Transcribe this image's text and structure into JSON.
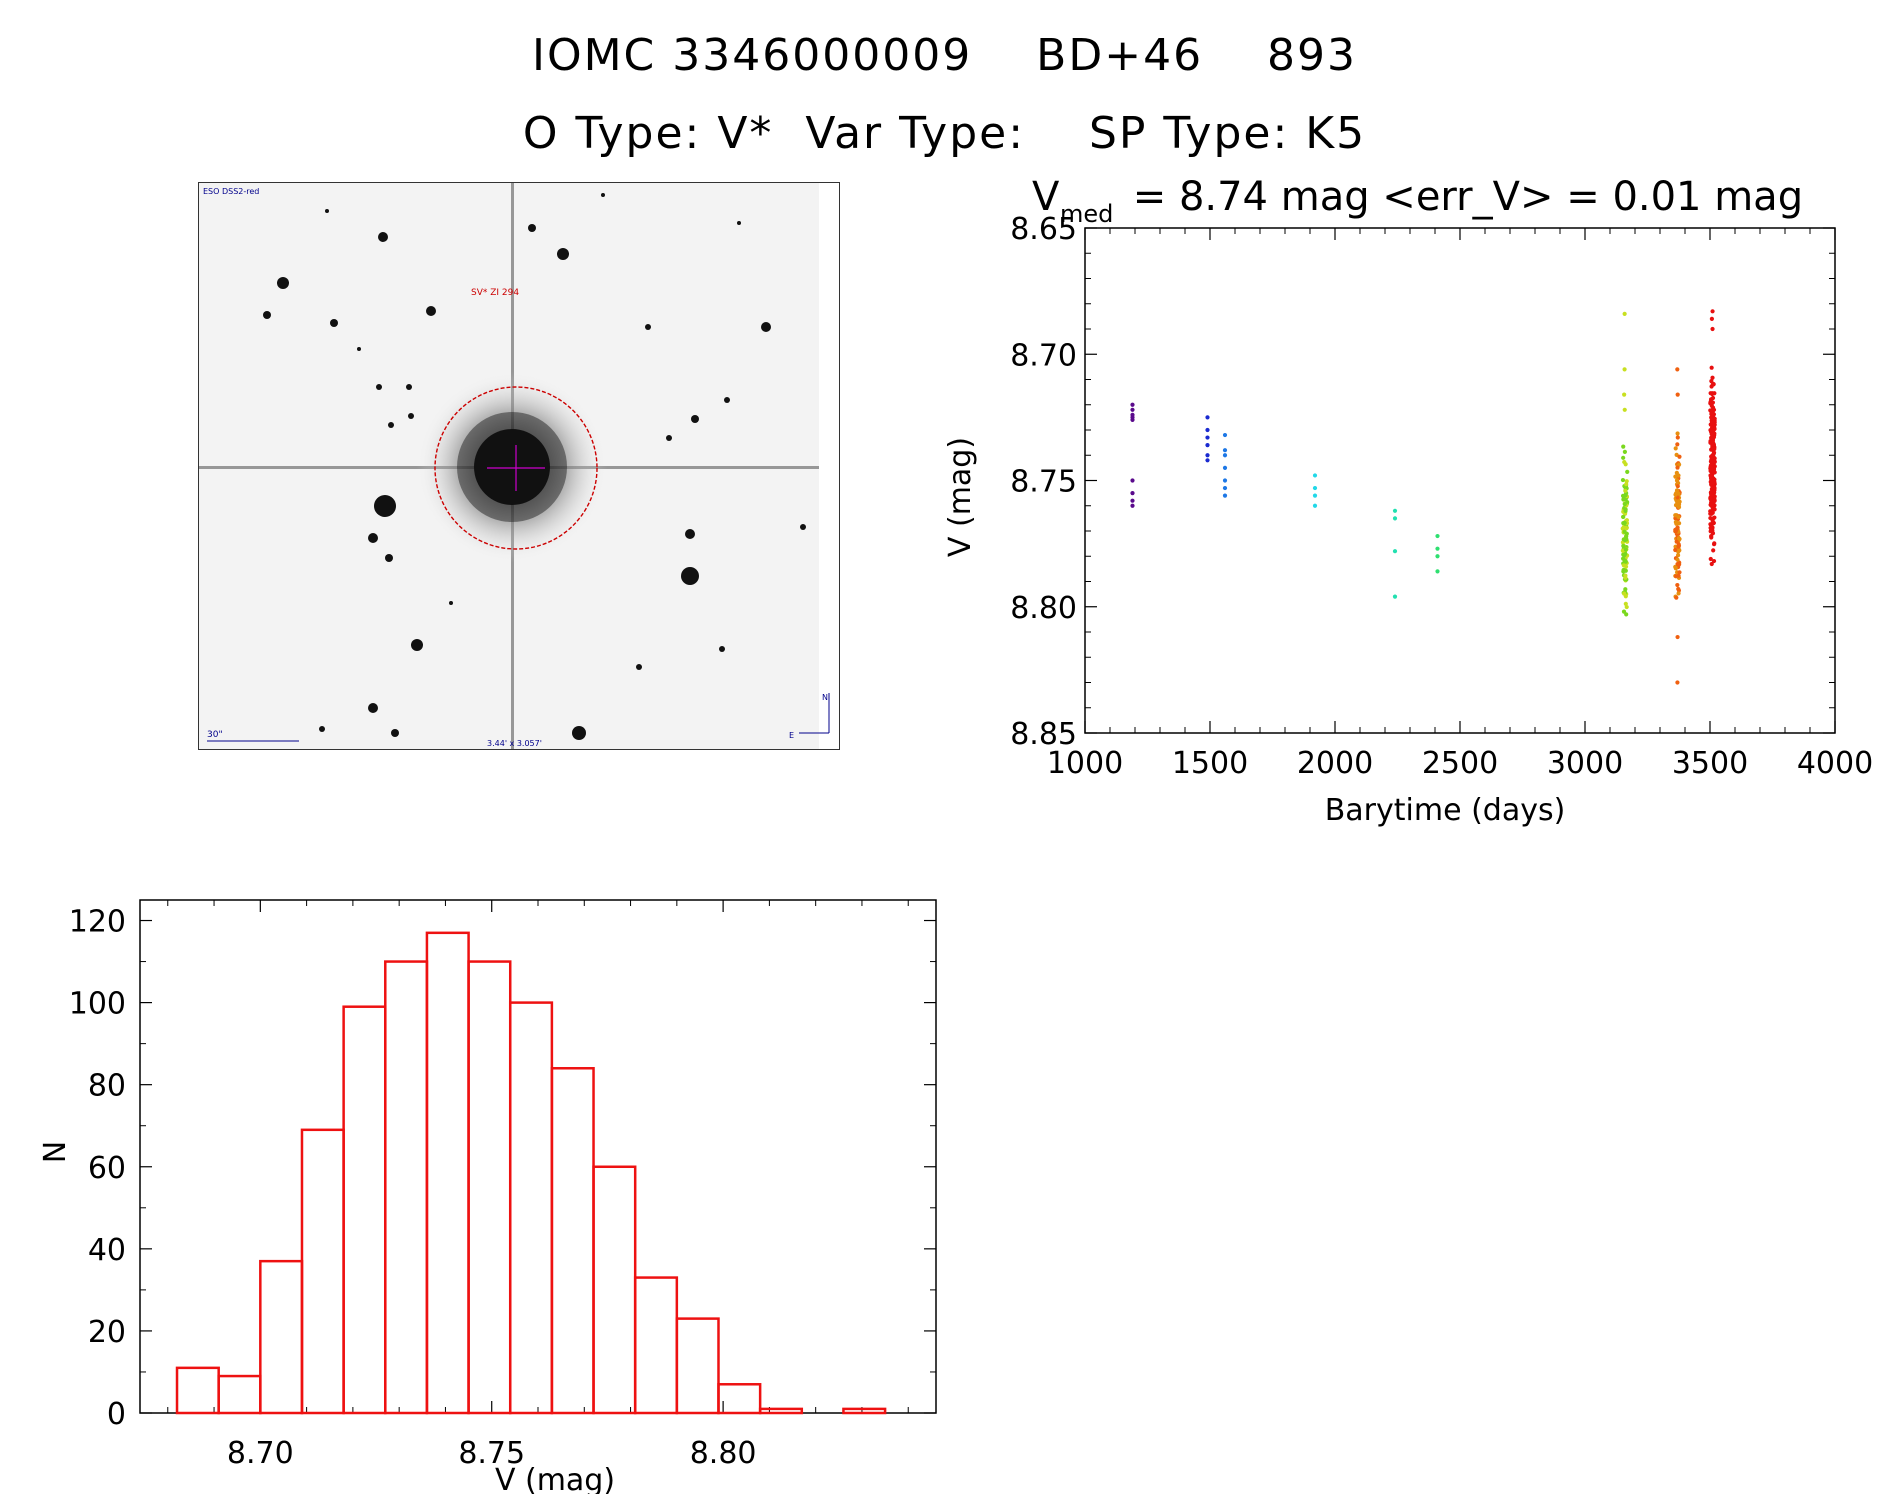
{
  "header": {
    "line1": "IOMC 3346000009    BD+46    893",
    "line2": "O Type: V*  Var Type:    SP Type: K5"
  },
  "finder_chart": {
    "survey_label": "ESO DSS2-red",
    "target_label": "SV* ZI 294",
    "scale_label": "30\"",
    "fov_label": "3.44' x 3.057'",
    "north_label": "N",
    "east_label": "E",
    "circle_color": "#cc0000",
    "crosshair_color": "#cc00cc",
    "annotation_color": "#00008b"
  },
  "chart_data": [
    {
      "type": "scatter",
      "title_main": "V",
      "title_sub": "med",
      "title_rest": " = 8.74 mag <err_V> = 0.01 mag",
      "xlabel": "Barytime (days)",
      "ylabel": "V (mag)",
      "xlim": [
        1000,
        4000
      ],
      "ylim": [
        8.85,
        8.65
      ],
      "y_inverted": true,
      "xticks": [
        "1000",
        "1500",
        "2000",
        "2500",
        "3000",
        "3500",
        "4000"
      ],
      "yticks": [
        "8.65",
        "8.70",
        "8.75",
        "8.80",
        "8.85"
      ],
      "groups": [
        {
          "x": 1190,
          "y": [
            8.72,
            8.722,
            8.724,
            8.725,
            8.726,
            8.75,
            8.755,
            8.758,
            8.76
          ],
          "color": "#5a0a8c"
        },
        {
          "x": 1490,
          "y": [
            8.725,
            8.73,
            8.733,
            8.736,
            8.74,
            8.742
          ],
          "color": "#1a2ad0"
        },
        {
          "x": 1560,
          "y": [
            8.732,
            8.738,
            8.74,
            8.745,
            8.75,
            8.753,
            8.756
          ],
          "color": "#1e78e6"
        },
        {
          "x": 1920,
          "y": [
            8.748,
            8.753,
            8.756,
            8.76
          ],
          "color": "#22d8e8"
        },
        {
          "x": 2240,
          "y": [
            8.762,
            8.765,
            8.778,
            8.796
          ],
          "color": "#22e0b0"
        },
        {
          "x": 2410,
          "y": [
            8.772,
            8.777,
            8.78,
            8.786
          ],
          "color": "#2ee070"
        },
        {
          "x": 3160,
          "ymin": 8.73,
          "ymax": 8.808,
          "n": 120,
          "outliers": [
            8.684,
            8.706,
            8.716,
            8.722
          ],
          "color": "#7ad81e",
          "color2": "#c8e020"
        },
        {
          "x": 3370,
          "ymin": 8.724,
          "ymax": 8.806,
          "n": 110,
          "outliers": [
            8.706,
            8.716,
            8.812,
            8.83
          ],
          "color": "#e89010",
          "color2": "#f06010"
        },
        {
          "x": 3510,
          "ymin": 8.698,
          "ymax": 8.788,
          "n": 260,
          "outliers": [
            8.683,
            8.686,
            8.69
          ],
          "color": "#e81010",
          "color2": "#e81010"
        }
      ]
    },
    {
      "type": "bar",
      "xlabel": "V (mag)",
      "ylabel": "N",
      "xlim": [
        8.674,
        8.846
      ],
      "ylim": [
        0,
        125
      ],
      "xticks": [
        "8.70",
        "8.75",
        "8.80"
      ],
      "yticks": [
        "0",
        "20",
        "40",
        "60",
        "80",
        "100",
        "120"
      ],
      "bin_width": 0.009,
      "bin_starts": [
        8.682,
        8.691,
        8.7,
        8.709,
        8.718,
        8.727,
        8.736,
        8.745,
        8.754,
        8.763,
        8.772,
        8.781,
        8.79,
        8.799,
        8.808,
        8.817,
        8.826
      ],
      "counts": [
        11,
        9,
        37,
        69,
        99,
        110,
        117,
        110,
        100,
        84,
        60,
        33,
        23,
        7,
        1,
        0,
        1
      ],
      "color": "#ee1111"
    }
  ]
}
